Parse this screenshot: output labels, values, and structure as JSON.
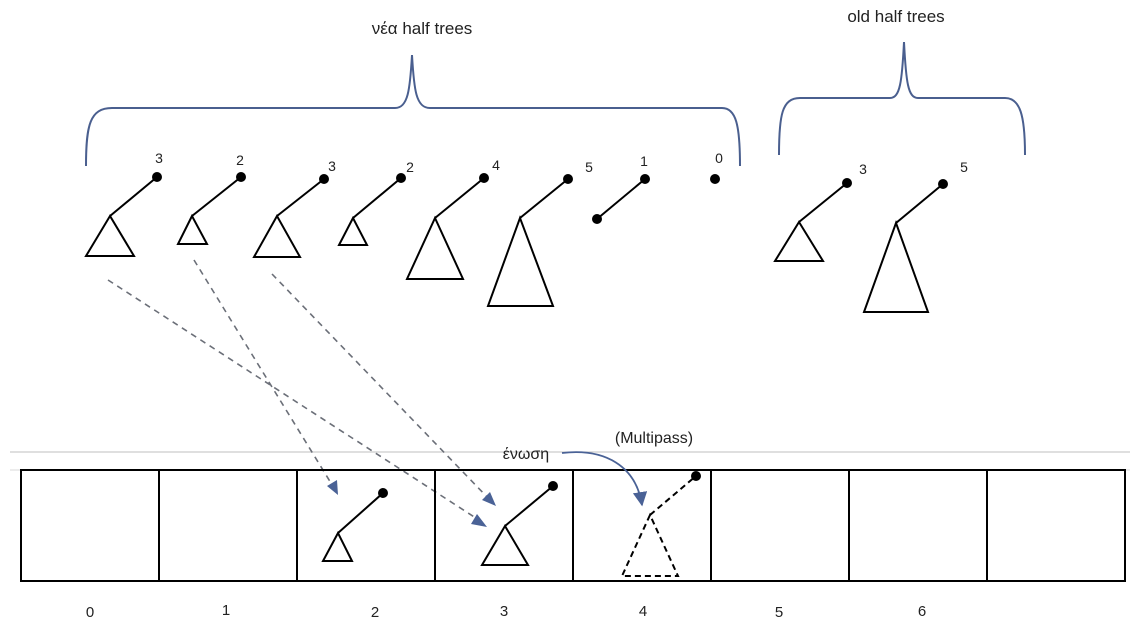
{
  "diagram": {
    "left_group_label": "νέα half trees",
    "right_group_label": "old half trees",
    "new_trees": [
      {
        "rank": "3"
      },
      {
        "rank": "2"
      },
      {
        "rank": "3"
      },
      {
        "rank": "2"
      },
      {
        "rank": "4"
      },
      {
        "rank": "5"
      },
      {
        "rank": "1"
      },
      {
        "rank": "0"
      }
    ],
    "old_trees": [
      {
        "rank": "3"
      },
      {
        "rank": "5"
      }
    ],
    "union_label": "ένωση",
    "multipass_label": "(Multipass)",
    "buckets": [
      "0",
      "1",
      "2",
      "3",
      "4",
      "5",
      "6"
    ]
  }
}
